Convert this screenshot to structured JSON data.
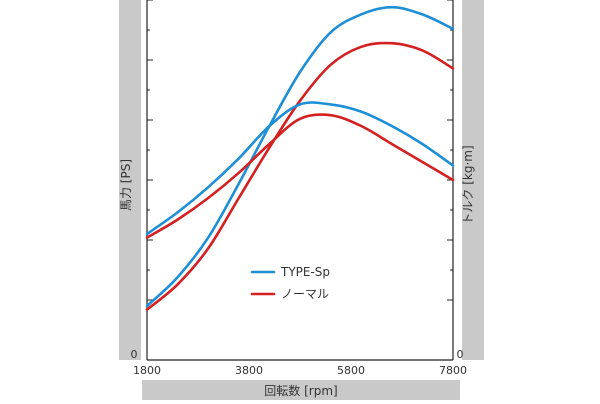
{
  "chart_data": {
    "type": "line",
    "title": "",
    "xlabel": "回転数 [rpm]",
    "ylabel_left": "馬力 [PS]",
    "ylabel_right": "トルク [kg·m]",
    "xlim": [
      1800,
      7800
    ],
    "x_ticks": [
      1800,
      3800,
      5800,
      7800
    ],
    "x_tick_labels": [
      "1800",
      "3800",
      "5800",
      "7800"
    ],
    "y_left_zero_label": "0",
    "y_right_zero_label": "0",
    "y_left_lim": [
      0,
      100
    ],
    "y_right_lim": [
      0,
      100
    ],
    "grid": false,
    "legend_position": "center",
    "legend": [
      {
        "name": "TYPE-Sp",
        "color": "#1e8fd6"
      },
      {
        "name": "ノーマル",
        "color": "#d42020"
      }
    ],
    "series": [
      {
        "name": "TYPE-Sp",
        "metric": "power",
        "axis": "left",
        "color": "#1e8fd6",
        "x": [
          1800,
          2400,
          3000,
          3600,
          4200,
          4800,
          5400,
          6000,
          6600,
          7200,
          7800
        ],
        "values": [
          15,
          23,
          34,
          49,
          65,
          80,
          91,
          96,
          98,
          96,
          92
        ]
      },
      {
        "name": "ノーマル",
        "metric": "power",
        "axis": "left",
        "color": "#d42020",
        "x": [
          1800,
          2400,
          3000,
          3600,
          4200,
          4800,
          5400,
          6000,
          6600,
          7200,
          7800
        ],
        "values": [
          14,
          21,
          31,
          45,
          59,
          72,
          82,
          87,
          88,
          86,
          81
        ]
      },
      {
        "name": "TYPE-Sp",
        "metric": "torque",
        "axis": "right",
        "color": "#1e8fd6",
        "x": [
          1800,
          2400,
          3000,
          3600,
          4200,
          4800,
          5400,
          6000,
          6600,
          7200,
          7800
        ],
        "values": [
          35,
          41,
          48,
          56,
          65,
          71,
          71,
          69,
          65,
          60,
          54
        ]
      },
      {
        "name": "ノーマル",
        "metric": "torque",
        "axis": "right",
        "color": "#d42020",
        "x": [
          1800,
          2400,
          3000,
          3600,
          4200,
          4800,
          5400,
          6000,
          6600,
          7200,
          7800
        ],
        "values": [
          34,
          39,
          45,
          52,
          60,
          67,
          68,
          65,
          60,
          55,
          50
        ]
      }
    ]
  }
}
